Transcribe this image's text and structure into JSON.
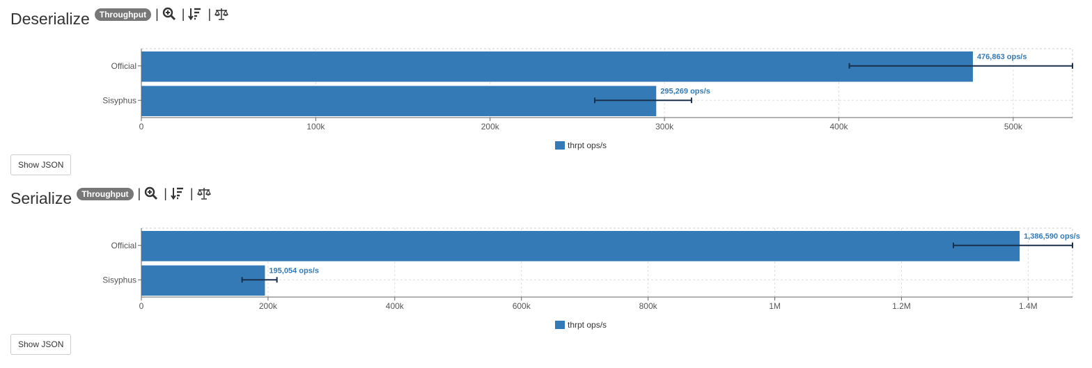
{
  "sections": [
    {
      "title": "Deserialize",
      "badge": "Throughput",
      "button_label": "Show JSON",
      "legend_label": "thrpt ops/s"
    },
    {
      "title": "Serialize",
      "badge": "Throughput",
      "button_label": "Show JSON",
      "legend_label": "thrpt ops/s"
    }
  ],
  "icons": [
    "zoom-in-icon",
    "sort-descending-icon",
    "scale-balance-icon"
  ],
  "colors": {
    "bar": "#337ab7",
    "errorbar": "#1a2f4a",
    "label": "#337ab7"
  },
  "chart_data": [
    {
      "type": "bar",
      "orientation": "horizontal",
      "categories": [
        "Official",
        "Sisyphus"
      ],
      "series": [
        {
          "name": "thrpt ops/s",
          "values": [
            476863,
            295269
          ]
        }
      ],
      "data_labels": [
        "476,863 ops/s",
        "295,269 ops/s"
      ],
      "error_low": [
        406000,
        260000
      ],
      "error_high": [
        534000,
        315500
      ],
      "xlim": [
        0,
        534000
      ],
      "xticks": [
        0,
        100000,
        200000,
        300000,
        400000,
        500000
      ],
      "xtick_labels": [
        "0",
        "100k",
        "200k",
        "300k",
        "400k",
        "500k"
      ],
      "grid": true,
      "legend": "bottom-center"
    },
    {
      "type": "bar",
      "orientation": "horizontal",
      "categories": [
        "Official",
        "Sisyphus"
      ],
      "series": [
        {
          "name": "thrpt ops/s",
          "values": [
            1386590,
            195054
          ]
        }
      ],
      "data_labels": [
        "1,386,590 ops/s",
        "195,054 ops/s"
      ],
      "error_low": [
        1282000,
        159000
      ],
      "error_high": [
        1470000,
        214000
      ],
      "xlim": [
        0,
        1470000
      ],
      "xticks": [
        0,
        200000,
        400000,
        600000,
        800000,
        1000000,
        1200000,
        1400000
      ],
      "xtick_labels": [
        "0",
        "200k",
        "400k",
        "600k",
        "800k",
        "1M",
        "1.2M",
        "1.4M"
      ],
      "grid": true,
      "legend": "bottom-center"
    }
  ]
}
